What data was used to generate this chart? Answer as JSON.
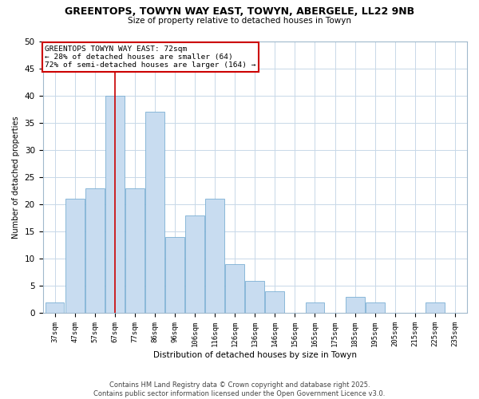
{
  "title": "GREENTOPS, TOWYN WAY EAST, TOWYN, ABERGELE, LL22 9NB",
  "subtitle": "Size of property relative to detached houses in Towyn",
  "xlabel": "Distribution of detached houses by size in Towyn",
  "ylabel": "Number of detached properties",
  "bar_color": "#c8dcf0",
  "bar_edge_color": "#7bafd4",
  "bin_labels": [
    "37sqm",
    "47sqm",
    "57sqm",
    "67sqm",
    "77sqm",
    "86sqm",
    "96sqm",
    "106sqm",
    "116sqm",
    "126sqm",
    "136sqm",
    "146sqm",
    "156sqm",
    "165sqm",
    "175sqm",
    "185sqm",
    "195sqm",
    "205sqm",
    "215sqm",
    "225sqm",
    "235sqm"
  ],
  "bar_heights": [
    2,
    21,
    23,
    40,
    23,
    37,
    14,
    18,
    21,
    9,
    6,
    4,
    0,
    2,
    0,
    3,
    2,
    0,
    0,
    2,
    0
  ],
  "ylim": [
    0,
    50
  ],
  "yticks": [
    0,
    5,
    10,
    15,
    20,
    25,
    30,
    35,
    40,
    45,
    50
  ],
  "annotation_title": "GREENTOPS TOWYN WAY EAST: 72sqm",
  "annotation_line1": "← 28% of detached houses are smaller (64)",
  "annotation_line2": "72% of semi-detached houses are larger (164) →",
  "annotation_box_color": "#ffffff",
  "annotation_box_edge_color": "#cc0000",
  "highlight_bar_index": 3,
  "highlight_line_color": "#cc0000",
  "footer1": "Contains HM Land Registry data © Crown copyright and database right 2025.",
  "footer2": "Contains public sector information licensed under the Open Government Licence v3.0."
}
